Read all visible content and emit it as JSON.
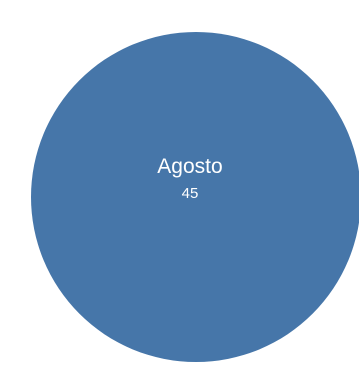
{
  "chart_data": {
    "type": "pie",
    "slices": [
      {
        "label": "Agosto",
        "value": 45,
        "color": "#4676a9"
      }
    ],
    "total": 45
  }
}
